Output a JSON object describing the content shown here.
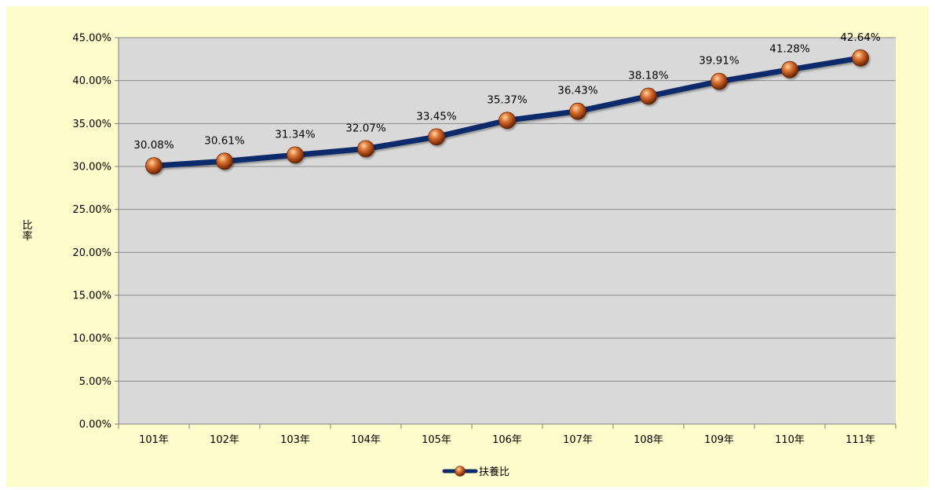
{
  "chart_data": {
    "type": "line",
    "categories": [
      "101年",
      "102年",
      "103年",
      "104年",
      "105年",
      "106年",
      "107年",
      "108年",
      "109年",
      "110年",
      "111年"
    ],
    "series": [
      {
        "name": "扶養比",
        "values": [
          30.08,
          30.61,
          31.34,
          32.07,
          33.45,
          35.37,
          36.43,
          38.18,
          39.91,
          41.28,
          42.64
        ],
        "labels": [
          "30.08%",
          "30.61%",
          "31.34%",
          "32.07%",
          "33.45%",
          "35.37%",
          "36.43%",
          "38.18%",
          "39.91%",
          "41.28%",
          "42.64%"
        ]
      }
    ],
    "ylabel": "比率",
    "ylim": [
      0,
      45
    ],
    "yticks": [
      "0.00%",
      "5.00%",
      "10.00%",
      "15.00%",
      "20.00%",
      "25.00%",
      "30.00%",
      "35.00%",
      "40.00%",
      "45.00%"
    ],
    "grid": true,
    "legend_position": "bottom"
  },
  "colors": {
    "background": "#fffccc",
    "plot_area": "#d9d9d9",
    "gridline": "#8c8c8c",
    "line": "#0d2b6b",
    "marker": "#c0581e"
  }
}
